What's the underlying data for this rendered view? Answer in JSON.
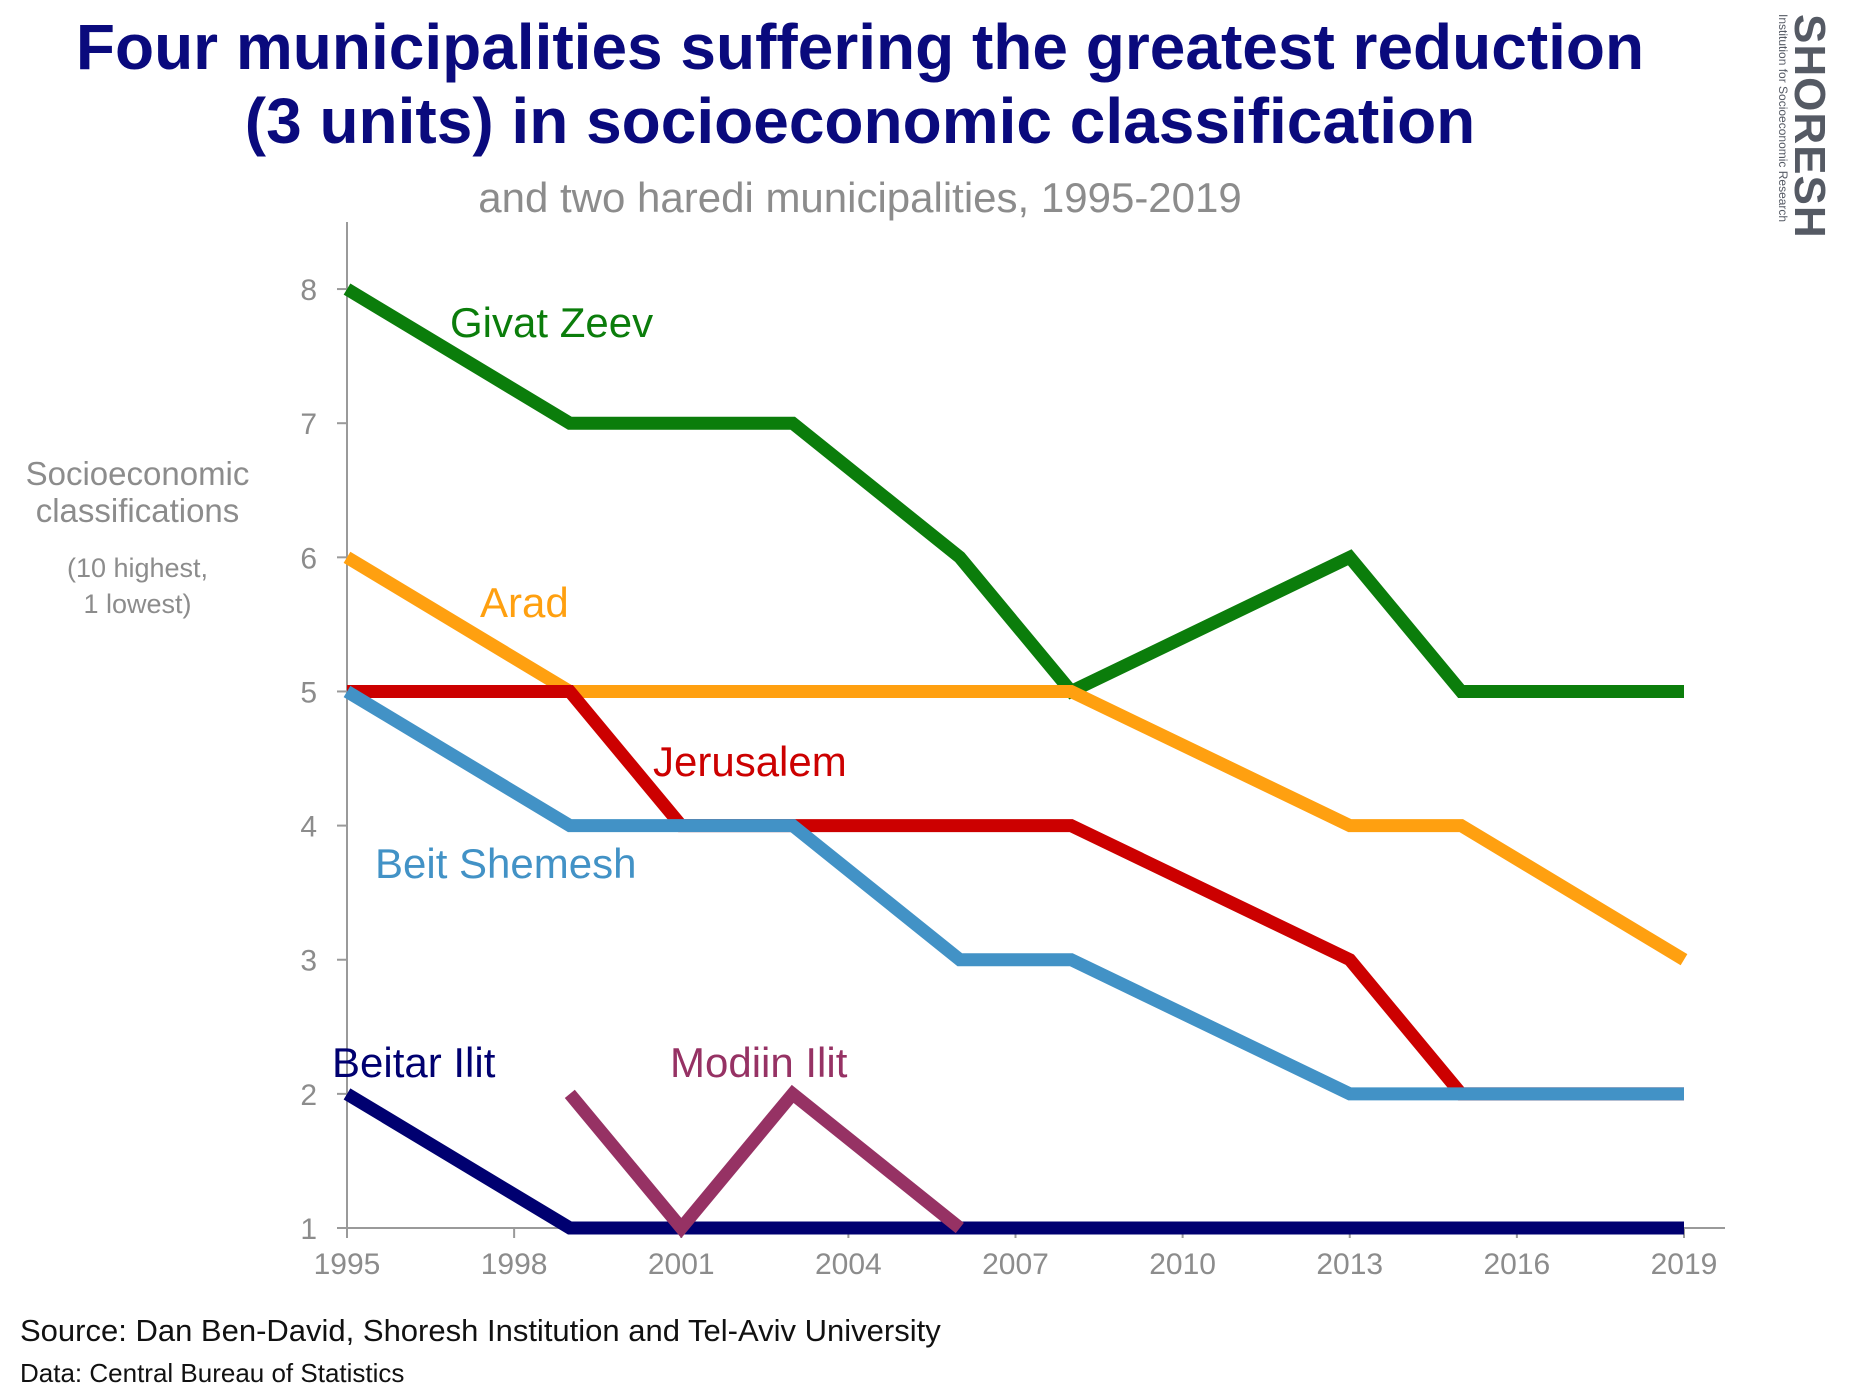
{
  "header": {
    "title_line1": "Four municipalities suffering the greatest reduction",
    "title_line2": "(3 units) in socioeconomic classification",
    "subtitle": "and two haredi municipalities, 1995-2019"
  },
  "axis": {
    "ylabel_line1": "Socioeconomic",
    "ylabel_line2": "classifications",
    "ynote_line1": "(10 highest,",
    "ynote_line2": "1 lowest)"
  },
  "footer": {
    "source": "Source: Dan Ben-David, Shoresh Institution and Tel-Aviv University",
    "data": "Data: Central Bureau of Statistics"
  },
  "logo": {
    "word": "SHORESH",
    "tagline": "Institution for Socioeconomic Research",
    "accent_color": "#2a6ebb"
  },
  "chart_data": {
    "type": "line",
    "subtitle": "and two haredi municipalities, 1995-2019",
    "ylabel": "Socioeconomic classifications",
    "xlim": [
      1995,
      2019
    ],
    "ylim": [
      1,
      8.5
    ],
    "xticks": [
      1995,
      1998,
      2001,
      2004,
      2007,
      2010,
      2013,
      2016,
      2019
    ],
    "yticks": [
      1,
      2,
      3,
      4,
      5,
      6,
      7,
      8
    ],
    "grid": false,
    "series": [
      {
        "name": "Givat Zeev",
        "color": "#0b7d0b",
        "x": [
          1995,
          1999,
          2003,
          2006,
          2008,
          2013,
          2015,
          2019
        ],
        "y": [
          8,
          7,
          7,
          6,
          5,
          6,
          5,
          5
        ]
      },
      {
        "name": "Arad",
        "color": "#ffa010",
        "x": [
          1995,
          1999,
          2003,
          2006,
          2008,
          2013,
          2015,
          2019
        ],
        "y": [
          6,
          5,
          5,
          5,
          5,
          4,
          4,
          3
        ]
      },
      {
        "name": "Jerusalem",
        "color": "#cc0000",
        "x": [
          1995,
          1999,
          2001,
          2003,
          2006,
          2008,
          2013,
          2015,
          2019
        ],
        "y": [
          5,
          5,
          4,
          4,
          4,
          4,
          3,
          2,
          2
        ]
      },
      {
        "name": "Beit Shemesh",
        "color": "#4292c6",
        "x": [
          1995,
          1999,
          2001,
          2003,
          2006,
          2008,
          2013,
          2015,
          2019
        ],
        "y": [
          5,
          4,
          4,
          4,
          3,
          3,
          2,
          2,
          2
        ]
      },
      {
        "name": "Beitar Ilit",
        "color": "#000070",
        "x": [
          1995,
          1999,
          2019
        ],
        "y": [
          2,
          1,
          1
        ]
      },
      {
        "name": "Modiin Ilit",
        "color": "#963264",
        "x": [
          1999,
          2001,
          2003,
          2006
        ],
        "y": [
          2,
          1,
          2,
          1
        ]
      }
    ]
  }
}
